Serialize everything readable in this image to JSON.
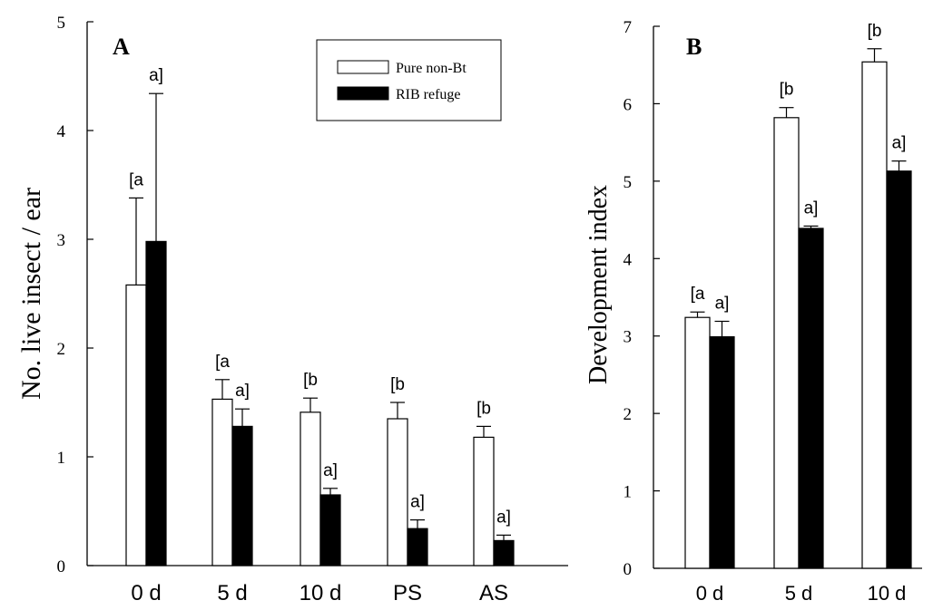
{
  "chart_data": [
    {
      "type": "bar",
      "panel_label": "A",
      "xlabel": "",
      "ylabel": "No. live insect / ear",
      "ylim": [
        0,
        5
      ],
      "yticks": [
        "0",
        "1",
        "2",
        "3",
        "4",
        "5"
      ],
      "categories": [
        "0 d",
        "5 d",
        "10 d",
        "PS",
        "AS"
      ],
      "series": [
        {
          "name": "Pure non-Bt",
          "fill": "#ffffff",
          "values": [
            2.58,
            1.53,
            1.41,
            1.35,
            1.18
          ],
          "errors": [
            0.8,
            0.18,
            0.13,
            0.15,
            0.1
          ],
          "labels": [
            "[a",
            "[a",
            "[b",
            "[b",
            "[b"
          ]
        },
        {
          "name": "RIB refuge",
          "fill": "#000000",
          "values": [
            2.98,
            1.28,
            0.65,
            0.34,
            0.23
          ],
          "errors": [
            1.36,
            0.16,
            0.06,
            0.08,
            0.05
          ],
          "labels": [
            "a]",
            "a]",
            "a]",
            "a]",
            "a]"
          ]
        }
      ],
      "legend": {
        "position": "top-right",
        "entries": [
          "Pure non-Bt",
          "RIB refuge"
        ]
      },
      "grid": false
    },
    {
      "type": "bar",
      "panel_label": "B",
      "xlabel": "",
      "ylabel": "Development index",
      "ylim": [
        0,
        7
      ],
      "yticks": [
        "0",
        "1",
        "2",
        "3",
        "4",
        "5",
        "6",
        "7"
      ],
      "categories": [
        "0 d",
        "5 d",
        "10 d"
      ],
      "series": [
        {
          "name": "Pure non-Bt",
          "fill": "#ffffff",
          "values": [
            3.24,
            5.82,
            6.54
          ],
          "errors": [
            0.07,
            0.13,
            0.17
          ],
          "labels": [
            "[a",
            "[b",
            "[b"
          ]
        },
        {
          "name": "RIB refuge",
          "fill": "#000000",
          "values": [
            2.99,
            4.39,
            5.13
          ],
          "errors": [
            0.2,
            0.03,
            0.13
          ],
          "labels": [
            "a]",
            "a]",
            "a]"
          ]
        }
      ],
      "grid": false
    }
  ]
}
